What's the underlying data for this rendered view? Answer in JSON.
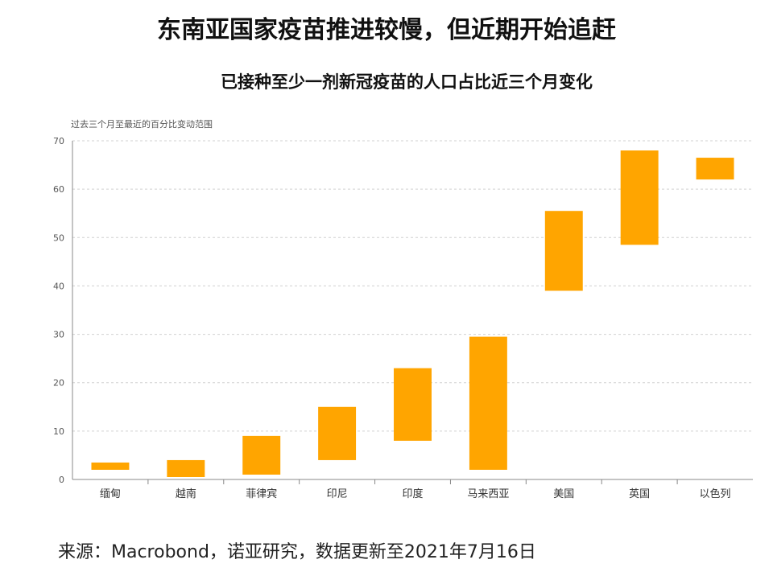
{
  "title": "东南亚国家疫苗推进较慢，但近期开始追赶",
  "subtitle": "已接种至少一剂新冠疫苗的人口占比近三个月变化",
  "note": "过去三个月至最近的百分比变动范围",
  "source": "来源：Macrobond，诺亚研究，数据更新至2021年7月16日",
  "colors": {
    "bar": "#FFA500",
    "grid": "#d0d0d0",
    "axis": "#888888",
    "text": "#555555"
  },
  "chart_data": {
    "type": "bar",
    "categories": [
      "缅甸",
      "越南",
      "菲律宾",
      "印尼",
      "印度",
      "马来西亚",
      "美国",
      "英国",
      "以色列"
    ],
    "ranges": [
      [
        2,
        3.5
      ],
      [
        0.5,
        4
      ],
      [
        1,
        9
      ],
      [
        4,
        15
      ],
      [
        8,
        23
      ],
      [
        2,
        29.5
      ],
      [
        39,
        55.5
      ],
      [
        48.5,
        68
      ],
      [
        62,
        66.5
      ]
    ],
    "ylim": [
      0,
      70
    ],
    "yticks": [
      0,
      10,
      20,
      30,
      40,
      50,
      60,
      70
    ],
    "grid": true,
    "legend": "none"
  }
}
